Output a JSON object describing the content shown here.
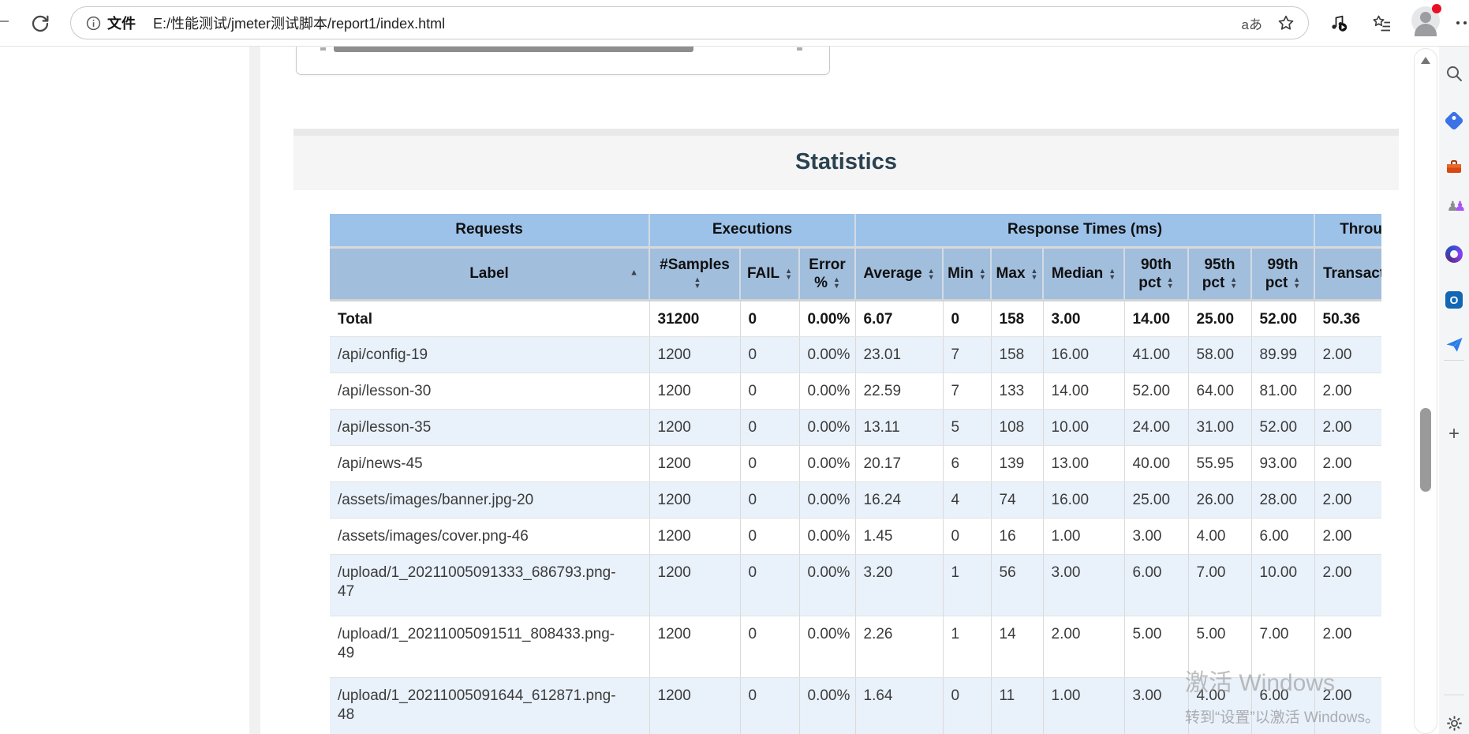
{
  "browser": {
    "address": {
      "scheme_label": "文件",
      "url": "E:/性能测试/jmeter测试脚本/report1/index.html",
      "translate_glyph": "aあ"
    }
  },
  "sidebar": {
    "outlook_letter": "O",
    "plus_glyph": "+",
    "pawn_glyph": "♟",
    "icon_names": [
      "search",
      "shopping-tag",
      "tools",
      "games",
      "microsoft-365",
      "outlook",
      "send",
      "add",
      "settings"
    ]
  },
  "page": {
    "title": "Statistics",
    "watermark_line1": "激活 Windows",
    "watermark_line2": "转到“设置”以激活 Windows。"
  },
  "colors": {
    "group_header_blue": "#9cc2e9",
    "column_header_blue": "#a1bedd",
    "shaded_row": "#e9f1fa",
    "title_color": "#2b4250"
  },
  "table": {
    "group_headers": [
      {
        "label": "Requests",
        "cols": 1
      },
      {
        "label": "Executions",
        "cols": 3
      },
      {
        "label": "Response Times (ms)",
        "cols": 7
      },
      {
        "label": "Throughput",
        "cols": 1
      }
    ],
    "columns": [
      {
        "label": "Label",
        "sort": "asc"
      },
      {
        "label": "#Samples",
        "sort": "both"
      },
      {
        "label": "FAIL",
        "sort": "both"
      },
      {
        "label": "Error %",
        "sort": "both"
      },
      {
        "label": "Average",
        "sort": "both"
      },
      {
        "label": "Min",
        "sort": "both"
      },
      {
        "label": "Max",
        "sort": "both"
      },
      {
        "label": "Median",
        "sort": "both"
      },
      {
        "label": "90th pct",
        "sort": "both"
      },
      {
        "label": "95th pct",
        "sort": "both"
      },
      {
        "label": "99th pct",
        "sort": "both"
      },
      {
        "label": "Transactions/s",
        "sort": "both"
      }
    ],
    "rows": [
      {
        "label": "Total",
        "bold": true,
        "shaded": false,
        "tall": false,
        "values": [
          "31200",
          "0",
          "0.00%",
          "6.07",
          "0",
          "158",
          "3.00",
          "14.00",
          "25.00",
          "52.00",
          "50.36"
        ]
      },
      {
        "label": "/api/config-19",
        "bold": false,
        "shaded": true,
        "tall": false,
        "values": [
          "1200",
          "0",
          "0.00%",
          "23.01",
          "7",
          "158",
          "16.00",
          "41.00",
          "58.00",
          "89.99",
          "2.00"
        ]
      },
      {
        "label": "/api/lesson-30",
        "bold": false,
        "shaded": false,
        "tall": false,
        "values": [
          "1200",
          "0",
          "0.00%",
          "22.59",
          "7",
          "133",
          "14.00",
          "52.00",
          "64.00",
          "81.00",
          "2.00"
        ]
      },
      {
        "label": "/api/lesson-35",
        "bold": false,
        "shaded": true,
        "tall": false,
        "values": [
          "1200",
          "0",
          "0.00%",
          "13.11",
          "5",
          "108",
          "10.00",
          "24.00",
          "31.00",
          "52.00",
          "2.00"
        ]
      },
      {
        "label": "/api/news-45",
        "bold": false,
        "shaded": false,
        "tall": false,
        "values": [
          "1200",
          "0",
          "0.00%",
          "20.17",
          "6",
          "139",
          "13.00",
          "40.00",
          "55.95",
          "93.00",
          "2.00"
        ]
      },
      {
        "label": "/assets/images/banner.jpg-20",
        "bold": false,
        "shaded": true,
        "tall": false,
        "values": [
          "1200",
          "0",
          "0.00%",
          "16.24",
          "4",
          "74",
          "16.00",
          "25.00",
          "26.00",
          "28.00",
          "2.00"
        ]
      },
      {
        "label": "/assets/images/cover.png-46",
        "bold": false,
        "shaded": false,
        "tall": false,
        "values": [
          "1200",
          "0",
          "0.00%",
          "1.45",
          "0",
          "16",
          "1.00",
          "3.00",
          "4.00",
          "6.00",
          "2.00"
        ]
      },
      {
        "label": "/upload/1_20211005091333_686793.png-47",
        "bold": false,
        "shaded": true,
        "tall": true,
        "values": [
          "1200",
          "0",
          "0.00%",
          "3.20",
          "1",
          "56",
          "3.00",
          "6.00",
          "7.00",
          "10.00",
          "2.00"
        ]
      },
      {
        "label": "/upload/1_20211005091511_808433.png-49",
        "bold": false,
        "shaded": false,
        "tall": true,
        "values": [
          "1200",
          "0",
          "0.00%",
          "2.26",
          "1",
          "14",
          "2.00",
          "5.00",
          "5.00",
          "7.00",
          "2.00"
        ]
      },
      {
        "label": "/upload/1_20211005091644_612871.png-48",
        "bold": false,
        "shaded": true,
        "tall": true,
        "values": [
          "1200",
          "0",
          "0.00%",
          "1.64",
          "0",
          "11",
          "1.00",
          "3.00",
          "4.00",
          "6.00",
          "2.00"
        ]
      }
    ]
  }
}
